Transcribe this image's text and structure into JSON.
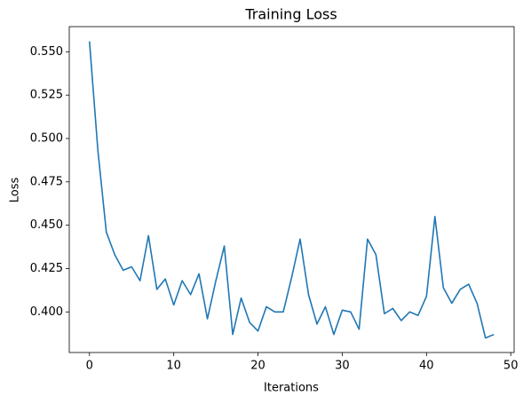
{
  "chart_data": {
    "type": "line",
    "title": "Training Loss",
    "xlabel": "Iterations",
    "ylabel": "Loss",
    "x": [
      0,
      1,
      2,
      3,
      4,
      5,
      6,
      7,
      8,
      9,
      10,
      11,
      12,
      13,
      14,
      15,
      16,
      17,
      18,
      19,
      20,
      21,
      22,
      23,
      24,
      25,
      26,
      27,
      28,
      29,
      30,
      31,
      32,
      33,
      34,
      35,
      36,
      37,
      38,
      39,
      40,
      41,
      42,
      43,
      44,
      45,
      46,
      47,
      48
    ],
    "series": [
      {
        "color": "#1f77b4",
        "values": [
          0.556,
          0.493,
          0.446,
          0.433,
          0.424,
          0.426,
          0.418,
          0.444,
          0.413,
          0.419,
          0.404,
          0.418,
          0.41,
          0.422,
          0.396,
          0.418,
          0.438,
          0.387,
          0.408,
          0.394,
          0.389,
          0.403,
          0.4,
          0.4,
          0.42,
          0.442,
          0.41,
          0.393,
          0.403,
          0.387,
          0.401,
          0.4,
          0.39,
          0.442,
          0.433,
          0.399,
          0.402,
          0.395,
          0.4,
          0.398,
          0.409,
          0.455,
          0.414,
          0.405,
          0.413,
          0.416,
          0.405,
          0.385,
          0.387
        ]
      }
    ],
    "xlim": [
      -2.4,
      50.4
    ],
    "xticks": [
      0,
      10,
      20,
      30,
      40,
      50
    ],
    "ylim": [
      0.3766,
      0.5645
    ],
    "yticks": [
      {
        "value": 0.4,
        "label": "0.400"
      },
      {
        "value": 0.425,
        "label": "0.425"
      },
      {
        "value": 0.45,
        "label": "0.450"
      },
      {
        "value": 0.475,
        "label": "0.475"
      },
      {
        "value": 0.5,
        "label": "0.500"
      },
      {
        "value": 0.525,
        "label": "0.525"
      },
      {
        "value": 0.55,
        "label": "0.550"
      }
    ],
    "grid": false
  }
}
